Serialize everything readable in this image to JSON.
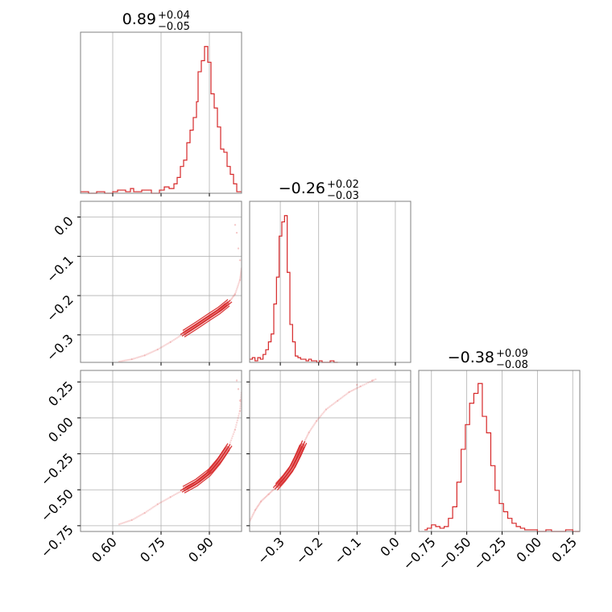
{
  "chart_data": {
    "type": "corner",
    "colors": {
      "line": "#d62728",
      "grid": "#b0b0b0",
      "frame": "#808080"
    },
    "panels": [
      {
        "id": "hist-0",
        "type": "histogram",
        "title": {
          "median": "0.89",
          "plus": "+0.04",
          "minus": "−0.05"
        },
        "xlim": [
          0.5,
          1.0
        ],
        "x_gridlines": [
          0.6,
          0.75,
          0.9
        ],
        "bins": [
          {
            "x0": 0.5,
            "h": 1
          },
          {
            "x0": 0.525,
            "h": 0
          },
          {
            "x0": 0.55,
            "h": 1
          },
          {
            "x0": 0.575,
            "h": 0
          },
          {
            "x0": 0.6,
            "h": 1
          },
          {
            "x0": 0.615,
            "h": 2
          },
          {
            "x0": 0.64,
            "h": 1
          },
          {
            "x0": 0.655,
            "h": 3
          },
          {
            "x0": 0.665,
            "h": 1
          },
          {
            "x0": 0.69,
            "h": 2
          },
          {
            "x0": 0.72,
            "h": 0
          },
          {
            "x0": 0.745,
            "h": 2
          },
          {
            "x0": 0.76,
            "h": 4
          },
          {
            "x0": 0.775,
            "h": 3
          },
          {
            "x0": 0.79,
            "h": 6
          },
          {
            "x0": 0.8,
            "h": 10
          },
          {
            "x0": 0.81,
            "h": 17
          },
          {
            "x0": 0.82,
            "h": 21
          },
          {
            "x0": 0.83,
            "h": 32
          },
          {
            "x0": 0.84,
            "h": 40
          },
          {
            "x0": 0.85,
            "h": 48
          },
          {
            "x0": 0.86,
            "h": 58
          },
          {
            "x0": 0.865,
            "h": 77
          },
          {
            "x0": 0.875,
            "h": 84
          },
          {
            "x0": 0.885,
            "h": 93
          },
          {
            "x0": 0.895,
            "h": 83
          },
          {
            "x0": 0.905,
            "h": 63
          },
          {
            "x0": 0.915,
            "h": 54
          },
          {
            "x0": 0.925,
            "h": 42
          },
          {
            "x0": 0.935,
            "h": 28
          },
          {
            "x0": 0.945,
            "h": 26
          },
          {
            "x0": 0.955,
            "h": 17
          },
          {
            "x0": 0.965,
            "h": 12
          },
          {
            "x0": 0.975,
            "h": 6
          },
          {
            "x0": 0.985,
            "h": 1
          }
        ],
        "bin_end": 1.0,
        "hmax": 100
      },
      {
        "id": "hist-1",
        "type": "histogram",
        "title": {
          "median": "−0.26",
          "plus": "+0.02",
          "minus": "−0.03"
        },
        "xlim": [
          -0.38,
          0.04
        ],
        "x_gridlines": [
          -0.3,
          -0.2,
          -0.1,
          0.0
        ],
        "bins": [
          {
            "x0": -0.38,
            "h": 2
          },
          {
            "x0": -0.373,
            "h": 3
          },
          {
            "x0": -0.366,
            "h": 1
          },
          {
            "x0": -0.359,
            "h": 3
          },
          {
            "x0": -0.352,
            "h": 2
          },
          {
            "x0": -0.345,
            "h": 5
          },
          {
            "x0": -0.338,
            "h": 8
          },
          {
            "x0": -0.331,
            "h": 13
          },
          {
            "x0": -0.324,
            "h": 18
          },
          {
            "x0": -0.317,
            "h": 37
          },
          {
            "x0": -0.31,
            "h": 54
          },
          {
            "x0": -0.303,
            "h": 80
          },
          {
            "x0": -0.296,
            "h": 89
          },
          {
            "x0": -0.289,
            "h": 93
          },
          {
            "x0": -0.282,
            "h": 57
          },
          {
            "x0": -0.275,
            "h": 24
          },
          {
            "x0": -0.268,
            "h": 13
          },
          {
            "x0": -0.261,
            "h": 4
          },
          {
            "x0": -0.254,
            "h": 3
          },
          {
            "x0": -0.247,
            "h": 2
          },
          {
            "x0": -0.24,
            "h": 2
          },
          {
            "x0": -0.233,
            "h": 1
          },
          {
            "x0": -0.226,
            "h": 2
          },
          {
            "x0": -0.219,
            "h": 1
          },
          {
            "x0": -0.212,
            "h": 1
          },
          {
            "x0": -0.205,
            "h": 0
          },
          {
            "x0": -0.198,
            "h": 1
          },
          {
            "x0": -0.191,
            "h": 0
          },
          {
            "x0": -0.17,
            "h": 1
          },
          {
            "x0": -0.16,
            "h": 0
          }
        ],
        "bin_end": -0.15,
        "hmax": 100
      },
      {
        "id": "hist-2",
        "type": "histogram",
        "title": {
          "median": "−0.38",
          "plus": "+0.09",
          "minus": "−0.08"
        },
        "xlim": [
          -0.84,
          0.3
        ],
        "x_gridlines": [
          -0.75,
          -0.5,
          -0.25,
          0.0,
          0.25
        ],
        "x_ticklabels": [
          "−0.75",
          "−0.50",
          "−0.25",
          "0.00",
          "0.25"
        ],
        "bins": [
          {
            "x0": -0.8,
            "h": 1
          },
          {
            "x0": -0.78,
            "h": 2
          },
          {
            "x0": -0.75,
            "h": 4
          },
          {
            "x0": -0.72,
            "h": 3
          },
          {
            "x0": -0.69,
            "h": 2
          },
          {
            "x0": -0.66,
            "h": 3
          },
          {
            "x0": -0.63,
            "h": 8
          },
          {
            "x0": -0.6,
            "h": 15
          },
          {
            "x0": -0.57,
            "h": 30
          },
          {
            "x0": -0.54,
            "h": 50
          },
          {
            "x0": -0.51,
            "h": 65
          },
          {
            "x0": -0.48,
            "h": 78
          },
          {
            "x0": -0.45,
            "h": 84
          },
          {
            "x0": -0.42,
            "h": 90
          },
          {
            "x0": -0.39,
            "h": 70
          },
          {
            "x0": -0.36,
            "h": 60
          },
          {
            "x0": -0.33,
            "h": 40
          },
          {
            "x0": -0.3,
            "h": 25
          },
          {
            "x0": -0.27,
            "h": 17
          },
          {
            "x0": -0.24,
            "h": 12
          },
          {
            "x0": -0.21,
            "h": 8
          },
          {
            "x0": -0.18,
            "h": 5
          },
          {
            "x0": -0.15,
            "h": 3
          },
          {
            "x0": -0.12,
            "h": 2
          },
          {
            "x0": -0.09,
            "h": 1
          },
          {
            "x0": -0.06,
            "h": 1
          },
          {
            "x0": -0.03,
            "h": 1
          },
          {
            "x0": 0.0,
            "h": 0
          },
          {
            "x0": 0.06,
            "h": 1
          },
          {
            "x0": 0.1,
            "h": 0
          },
          {
            "x0": 0.2,
            "h": 1
          },
          {
            "x0": 0.25,
            "h": 0
          }
        ],
        "bin_end": 0.3,
        "hmax": 96
      },
      {
        "id": "scatter-1-0",
        "type": "scatter2d",
        "xlim": [
          0.5,
          1.0
        ],
        "ylim": [
          -0.37,
          0.04
        ],
        "x_gridlines": [
          0.6,
          0.75,
          0.9
        ],
        "y_gridlines": [
          0.0,
          -0.1,
          -0.2,
          -0.3
        ],
        "y_ticklabels": [
          "0.0",
          "−0.1",
          "−0.2",
          "−0.3"
        ],
        "curve": [
          [
            0.62,
            -0.368
          ],
          [
            0.66,
            -0.362
          ],
          [
            0.7,
            -0.352
          ],
          [
            0.74,
            -0.337
          ],
          [
            0.78,
            -0.318
          ],
          [
            0.82,
            -0.297
          ],
          [
            0.86,
            -0.276
          ],
          [
            0.9,
            -0.254
          ],
          [
            0.93,
            -0.238
          ],
          [
            0.96,
            -0.218
          ],
          [
            0.98,
            -0.196
          ],
          [
            0.995,
            -0.16
          ],
          [
            1.0,
            -0.13
          ]
        ],
        "core": [
          0.82,
          0.97
        ],
        "outliers": [
          [
            0.98,
            -0.02
          ],
          [
            0.985,
            -0.04
          ],
          [
            0.99,
            -0.08
          ],
          [
            0.995,
            -0.11
          ]
        ]
      },
      {
        "id": "scatter-2-0",
        "type": "scatter2d",
        "xlim": [
          0.5,
          1.0
        ],
        "ylim": [
          -0.79,
          0.33
        ],
        "x_gridlines": [
          0.6,
          0.75,
          0.9
        ],
        "x_ticklabels": [
          "0.60",
          "0.75",
          "0.90"
        ],
        "y_gridlines": [
          0.25,
          0.0,
          -0.25,
          -0.5,
          -0.75
        ],
        "y_ticklabels": [
          "0.25",
          "0.00",
          "−0.25",
          "−0.50",
          "−0.75"
        ],
        "curve": [
          [
            0.62,
            -0.74
          ],
          [
            0.66,
            -0.71
          ],
          [
            0.7,
            -0.66
          ],
          [
            0.74,
            -0.6
          ],
          [
            0.78,
            -0.55
          ],
          [
            0.82,
            -0.5
          ],
          [
            0.86,
            -0.45
          ],
          [
            0.9,
            -0.38
          ],
          [
            0.93,
            -0.3
          ],
          [
            0.96,
            -0.2
          ],
          [
            0.98,
            -0.08
          ],
          [
            0.995,
            0.05
          ],
          [
            1.0,
            0.18
          ]
        ],
        "core": [
          0.82,
          0.97
        ],
        "outliers": [
          [
            0.985,
            0.26
          ],
          [
            0.99,
            0.2
          ],
          [
            0.995,
            0.12
          ]
        ]
      },
      {
        "id": "scatter-2-1",
        "type": "scatter2d",
        "xlim": [
          -0.38,
          0.04
        ],
        "ylim": [
          -0.79,
          0.33
        ],
        "x_gridlines": [
          -0.3,
          -0.2,
          -0.1,
          0.0
        ],
        "x_ticklabels": [
          "−0.3",
          "−0.2",
          "−0.1",
          "0.0"
        ],
        "y_gridlines": [
          0.25,
          0.0,
          -0.25,
          -0.5,
          -0.75
        ],
        "curve": [
          [
            -0.38,
            -0.72
          ],
          [
            -0.365,
            -0.64
          ],
          [
            -0.35,
            -0.58
          ],
          [
            -0.33,
            -0.53
          ],
          [
            -0.31,
            -0.48
          ],
          [
            -0.29,
            -0.42
          ],
          [
            -0.27,
            -0.35
          ],
          [
            -0.255,
            -0.27
          ],
          [
            -0.24,
            -0.18
          ],
          [
            -0.225,
            -0.1
          ],
          [
            -0.205,
            -0.02
          ],
          [
            -0.18,
            0.06
          ],
          [
            -0.15,
            0.12
          ],
          [
            -0.12,
            0.18
          ],
          [
            -0.09,
            0.22
          ],
          [
            -0.05,
            0.27
          ]
        ],
        "core": [
          -0.32,
          -0.24
        ],
        "outliers": [
          [
            -0.1,
            0.23
          ],
          [
            -0.06,
            0.26
          ]
        ]
      }
    ]
  }
}
